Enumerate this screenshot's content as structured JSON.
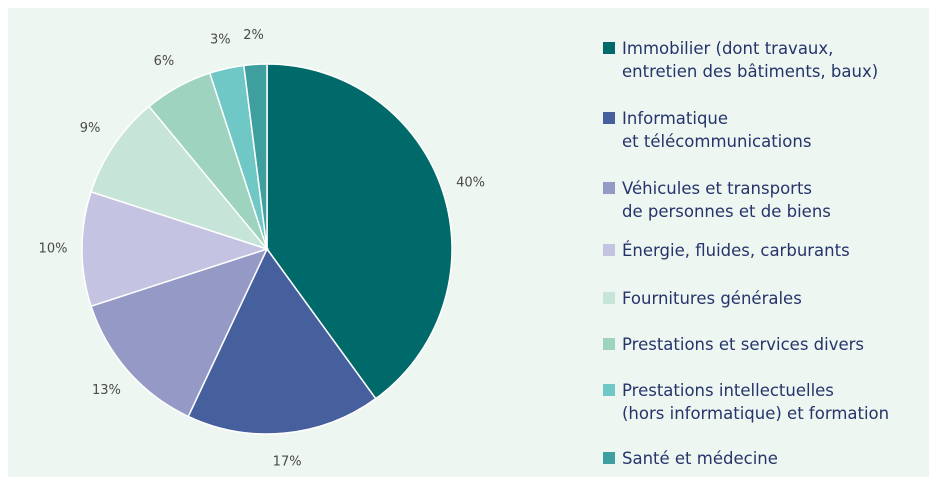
{
  "chart_data": {
    "type": "pie",
    "categories": [
      "Immobilier (dont travaux,\nentretien des bâtiments, baux)",
      "Informatique\net télécommunications",
      "Véhicules et transports\nde personnes et de biens",
      "Énergie, fluides, carburants",
      "Fournitures générales",
      "Prestations et services divers",
      "Prestations intellectuelles\n(hors informatique) et formation",
      "Santé et médecine"
    ],
    "values": [
      40,
      17,
      13,
      10,
      9,
      6,
      3,
      2
    ],
    "value_labels": [
      "40%",
      "17%",
      "13%",
      "10%",
      "9%",
      "6%",
      "3%",
      "2%"
    ],
    "colors": [
      "#006a6a",
      "#465f9d",
      "#9599c6",
      "#c4c3e2",
      "#c7e4d8",
      "#9dd3bf",
      "#6fc8c5",
      "#3e9f9e"
    ],
    "legend": "right"
  }
}
